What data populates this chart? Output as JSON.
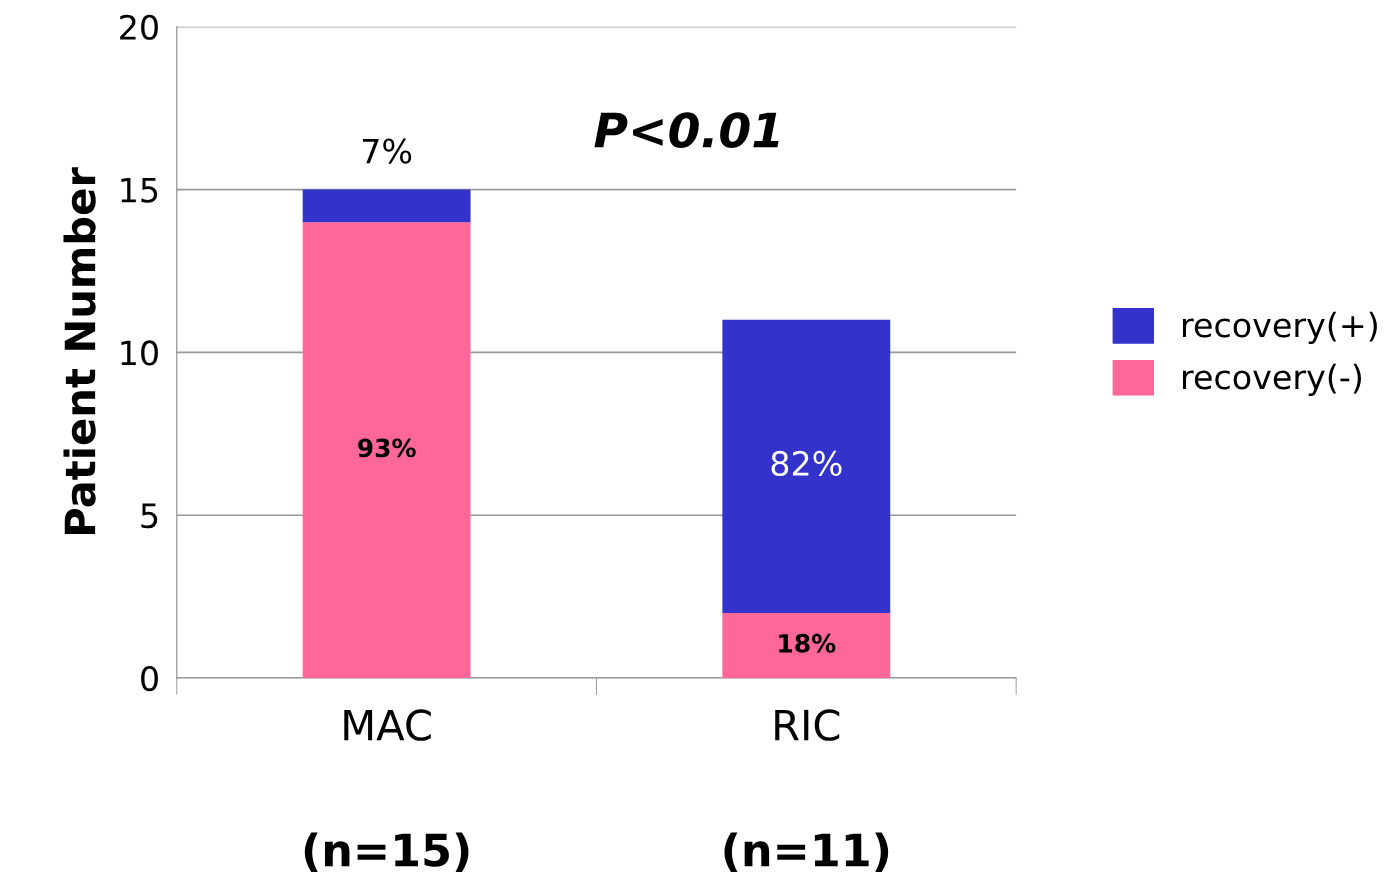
{
  "chart_data": {
    "type": "bar",
    "stacked": true,
    "ylabel": "Patient Number",
    "categories": [
      "MAC",
      "RIC"
    ],
    "series": [
      {
        "name": "recovery(-)",
        "color": "#ff6699",
        "values": [
          14,
          2
        ]
      },
      {
        "name": "recovery(+)",
        "color": "#3333cc",
        "values": [
          1,
          9
        ]
      }
    ],
    "ylim": [
      0,
      20
    ],
    "yticks": [
      0,
      5,
      10,
      15,
      20
    ],
    "grid": "y",
    "legend": "right",
    "annotations": [
      "P<0.01",
      "(n=15)",
      "(n=11)",
      "93%",
      "82%",
      {
        "text": "7%",
        "x": "MAC",
        "y": 15
      },
      {
        "text": "18%",
        "x": "RIC",
        "y": 2
      }
    ]
  }
}
